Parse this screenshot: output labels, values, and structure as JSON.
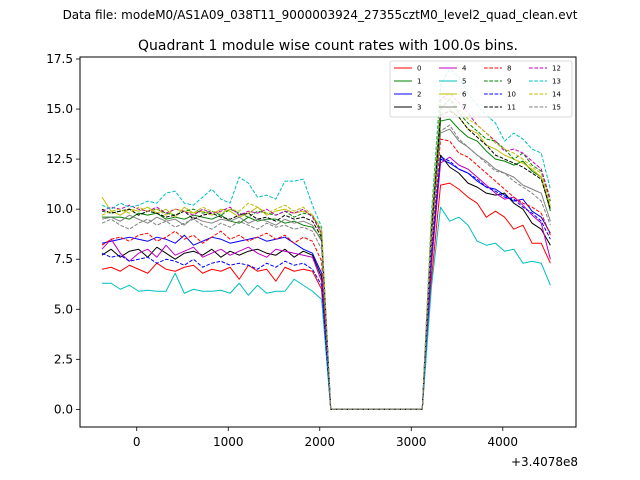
{
  "suptitle": "Data file: modeM0/AS1A09_038T11_9000003924_27355cztM0_level2_quad_clean.evt",
  "chart_data": {
    "type": "line",
    "title": "Quadrant 1 module wise count rates with 100.0s bins.",
    "xlabel": "",
    "ylabel": "",
    "x_offset_label": "+3.4078e8",
    "xlim": [
      -620,
      4800
    ],
    "ylim": [
      -0.88,
      17.6
    ],
    "xticks": [
      0,
      1000,
      2000,
      3000,
      4000
    ],
    "yticks": [
      0.0,
      2.5,
      5.0,
      7.5,
      10.0,
      12.5,
      15.0,
      17.5
    ],
    "ytick_labels": [
      "0.0",
      "2.5",
      "5.0",
      "7.5",
      "10.0",
      "12.5",
      "15.0",
      "17.5"
    ],
    "legend_position": "top-right",
    "legend_columns": 4,
    "x": [
      -380,
      -280,
      -180,
      -80,
      20,
      120,
      220,
      320,
      420,
      520,
      620,
      720,
      820,
      920,
      1020,
      1120,
      1220,
      1320,
      1420,
      1520,
      1620,
      1720,
      1820,
      1920,
      2020,
      2120,
      2220,
      2320,
      2420,
      2520,
      2620,
      2720,
      2820,
      2920,
      3020,
      3120,
      3220,
      3320,
      3420,
      3520,
      3620,
      3720,
      3820,
      3920,
      4020,
      4120,
      4220,
      4320,
      4420,
      4520
    ],
    "series": [
      {
        "name": "0",
        "color": "#ff0000",
        "dash": "solid",
        "values": [
          7.0,
          7.1,
          6.9,
          7.2,
          7.0,
          6.8,
          7.3,
          7.0,
          6.9,
          7.1,
          7.2,
          6.8,
          7.0,
          6.9,
          7.1,
          6.5,
          7.2,
          6.9,
          7.0,
          6.4,
          7.1,
          6.9,
          7.0,
          6.9,
          6.0,
          0.0,
          0.0,
          0.0,
          0.0,
          0.0,
          0.0,
          0.0,
          0.0,
          0.0,
          0.0,
          0.0,
          6.5,
          11.2,
          11.3,
          11.0,
          10.6,
          10.3,
          9.6,
          9.9,
          9.6,
          9.0,
          9.2,
          8.3,
          8.3,
          7.3
        ]
      },
      {
        "name": "1",
        "color": "#008000",
        "dash": "solid",
        "values": [
          9.6,
          9.6,
          9.6,
          9.5,
          9.8,
          9.7,
          9.8,
          9.5,
          9.6,
          9.5,
          9.7,
          9.6,
          9.5,
          9.7,
          9.4,
          9.3,
          9.6,
          9.4,
          9.5,
          9.5,
          9.3,
          9.4,
          9.2,
          9.1,
          8.5,
          0.0,
          0.0,
          0.0,
          0.0,
          0.0,
          0.0,
          0.0,
          0.0,
          0.0,
          0.0,
          0.0,
          8.5,
          14.4,
          14.5,
          14.0,
          13.6,
          13.4,
          12.9,
          12.5,
          12.4,
          12.2,
          12.4,
          11.9,
          11.6,
          9.9
        ]
      },
      {
        "name": "2",
        "color": "#0000ff",
        "dash": "solid",
        "values": [
          8.3,
          8.4,
          8.5,
          8.6,
          8.5,
          8.4,
          8.6,
          8.5,
          8.3,
          8.7,
          8.2,
          8.4,
          8.6,
          8.5,
          8.3,
          8.4,
          8.5,
          8.6,
          8.4,
          8.5,
          8.6,
          8.3,
          8.0,
          7.8,
          6.8,
          0.0,
          0.0,
          0.0,
          0.0,
          0.0,
          0.0,
          0.0,
          0.0,
          0.0,
          0.0,
          0.0,
          7.2,
          12.5,
          12.3,
          12.0,
          11.8,
          11.4,
          11.1,
          11.0,
          10.7,
          10.4,
          10.5,
          9.9,
          9.6,
          8.8
        ]
      },
      {
        "name": "3",
        "color": "#000000",
        "dash": "solid",
        "values": [
          7.7,
          8.0,
          7.6,
          7.9,
          8.0,
          7.6,
          8.1,
          7.8,
          7.5,
          7.8,
          7.9,
          7.7,
          8.0,
          7.6,
          7.9,
          7.7,
          7.9,
          8.0,
          7.8,
          7.7,
          8.0,
          7.6,
          7.9,
          7.7,
          6.6,
          0.0,
          0.0,
          0.0,
          0.0,
          0.0,
          0.0,
          0.0,
          0.0,
          0.0,
          0.0,
          0.0,
          7.5,
          12.7,
          12.1,
          11.8,
          11.3,
          11.1,
          10.8,
          10.7,
          10.8,
          10.3,
          10.0,
          9.3,
          9.0,
          8.2
        ]
      },
      {
        "name": "4",
        "color": "#bf00bf",
        "dash": "solid",
        "values": [
          8.0,
          8.5,
          7.8,
          7.4,
          7.8,
          8.0,
          7.6,
          8.2,
          7.7,
          7.9,
          8.1,
          7.6,
          7.8,
          8.0,
          7.7,
          7.9,
          8.1,
          7.8,
          7.6,
          8.0,
          7.9,
          7.8,
          7.7,
          7.6,
          6.4,
          0.0,
          0.0,
          0.0,
          0.0,
          0.0,
          0.0,
          0.0,
          0.0,
          0.0,
          0.0,
          0.0,
          7.3,
          12.3,
          12.6,
          12.2,
          12.0,
          11.6,
          11.2,
          10.8,
          10.5,
          10.6,
          10.2,
          9.7,
          9.3,
          7.5
        ]
      },
      {
        "name": "5",
        "color": "#00bfbf",
        "dash": "solid",
        "values": [
          6.3,
          6.3,
          6.0,
          6.2,
          5.9,
          5.95,
          5.9,
          5.9,
          6.8,
          5.8,
          6.0,
          5.9,
          5.9,
          5.95,
          5.8,
          6.3,
          5.7,
          6.2,
          5.8,
          5.9,
          5.9,
          6.5,
          6.2,
          5.9,
          5.5,
          0.0,
          0.0,
          0.0,
          0.0,
          0.0,
          0.0,
          0.0,
          0.0,
          0.0,
          0.0,
          0.0,
          6.1,
          10.1,
          9.4,
          9.6,
          9.2,
          8.4,
          8.2,
          8.3,
          7.9,
          8.0,
          7.3,
          7.4,
          7.3,
          6.2
        ]
      },
      {
        "name": "6",
        "color": "#bfbf00",
        "dash": "solid",
        "values": [
          10.6,
          9.9,
          9.7,
          10.0,
          9.9,
          10.1,
          9.8,
          10.0,
          9.6,
          10.1,
          9.8,
          9.9,
          9.7,
          10.0,
          9.9,
          9.6,
          9.8,
          10.1,
          9.7,
          9.9,
          10.0,
          9.8,
          9.9,
          9.7,
          8.7,
          0.0,
          0.0,
          0.0,
          0.0,
          0.0,
          0.0,
          0.0,
          0.0,
          0.0,
          0.0,
          0.0,
          9.0,
          15.2,
          15.0,
          14.6,
          14.0,
          13.8,
          13.2,
          13.0,
          12.7,
          12.5,
          12.3,
          12.0,
          11.6,
          10.1
        ]
      },
      {
        "name": "7",
        "color": "#808080",
        "dash": "solid",
        "values": [
          9.5,
          9.6,
          9.4,
          9.7,
          9.5,
          9.3,
          9.6,
          9.4,
          9.5,
          9.2,
          9.6,
          9.4,
          9.3,
          9.5,
          9.4,
          9.6,
          9.3,
          9.5,
          9.4,
          9.2,
          9.5,
          9.3,
          9.4,
          9.2,
          8.4,
          0.0,
          0.0,
          0.0,
          0.0,
          0.0,
          0.0,
          0.0,
          0.0,
          0.0,
          0.0,
          0.0,
          8.8,
          13.8,
          14.0,
          13.4,
          13.1,
          12.7,
          12.4,
          12.0,
          11.8,
          11.6,
          11.2,
          11.0,
          10.8,
          9.4
        ]
      },
      {
        "name": "8",
        "color": "#ff0000",
        "dash": "dashed",
        "values": [
          8.2,
          8.5,
          8.6,
          8.4,
          8.7,
          8.8,
          8.4,
          8.6,
          8.9,
          8.5,
          8.7,
          8.3,
          8.6,
          8.9,
          8.5,
          8.7,
          8.4,
          8.6,
          8.8,
          8.5,
          8.7,
          8.3,
          8.6,
          8.4,
          7.4,
          0.0,
          0.0,
          0.0,
          0.0,
          0.0,
          0.0,
          0.0,
          0.0,
          0.0,
          0.0,
          0.0,
          8.0,
          13.5,
          13.4,
          12.8,
          12.6,
          12.2,
          11.8,
          11.4,
          11.0,
          10.6,
          10.3,
          10.1,
          9.8,
          8.7
        ]
      },
      {
        "name": "9",
        "color": "#008000",
        "dash": "dashed",
        "values": [
          9.9,
          9.8,
          9.9,
          10.0,
          9.7,
          9.9,
          10.0,
          9.8,
          9.7,
          9.9,
          10.0,
          9.8,
          9.9,
          9.7,
          10.0,
          9.8,
          9.6,
          9.9,
          9.8,
          9.7,
          9.9,
          9.6,
          9.8,
          9.7,
          8.9,
          0.0,
          0.0,
          0.0,
          0.0,
          0.0,
          0.0,
          0.0,
          0.0,
          0.0,
          0.0,
          0.0,
          9.2,
          15.0,
          15.5,
          14.8,
          14.3,
          13.9,
          13.5,
          13.4,
          13.0,
          12.5,
          12.8,
          12.2,
          11.9,
          10.4
        ]
      },
      {
        "name": "10",
        "color": "#0000ff",
        "dash": "dashed",
        "values": [
          7.8,
          7.6,
          7.7,
          7.4,
          7.5,
          7.6,
          7.3,
          7.5,
          7.4,
          7.2,
          7.5,
          7.1,
          7.3,
          7.4,
          7.2,
          7.3,
          7.2,
          7.0,
          7.3,
          7.1,
          7.4,
          7.2,
          7.3,
          7.0,
          6.2,
          0.0,
          0.0,
          0.0,
          0.0,
          0.0,
          0.0,
          0.0,
          0.0,
          0.0,
          0.0,
          0.0,
          7.8,
          12.6,
          12.4,
          12.0,
          11.8,
          11.5,
          11.1,
          10.9,
          10.6,
          10.5,
          10.1,
          9.8,
          9.4,
          8.5
        ]
      },
      {
        "name": "11",
        "color": "#000000",
        "dash": "dashed",
        "values": [
          10.0,
          9.8,
          9.9,
          10.0,
          9.7,
          9.9,
          9.8,
          9.6,
          9.7,
          9.9,
          9.5,
          9.7,
          9.8,
          9.6,
          9.5,
          9.7,
          9.8,
          9.5,
          9.6,
          9.4,
          9.7,
          9.5,
          9.6,
          9.4,
          8.6,
          0.0,
          0.0,
          0.0,
          0.0,
          0.0,
          0.0,
          0.0,
          0.0,
          0.0,
          0.0,
          0.0,
          8.9,
          14.7,
          14.9,
          14.6,
          14.0,
          13.6,
          13.2,
          12.7,
          12.5,
          12.3,
          12.1,
          11.8,
          11.5,
          10.0
        ]
      },
      {
        "name": "12",
        "color": "#bf00bf",
        "dash": "dashed",
        "values": [
          9.9,
          10.1,
          10.0,
          10.2,
          10.0,
          9.9,
          10.1,
          9.8,
          10.0,
          9.9,
          9.7,
          10.0,
          9.8,
          9.9,
          10.1,
          9.7,
          9.9,
          9.8,
          10.0,
          9.7,
          9.9,
          9.8,
          10.0,
          9.6,
          8.8,
          0.0,
          0.0,
          0.0,
          0.0,
          0.0,
          0.0,
          0.0,
          0.0,
          0.0,
          0.0,
          0.0,
          9.5,
          15.5,
          15.8,
          15.3,
          14.8,
          14.2,
          13.8,
          13.4,
          12.9,
          13.0,
          12.8,
          12.4,
          12.0,
          10.5
        ]
      },
      {
        "name": "13",
        "color": "#00bfbf",
        "dash": "dashed",
        "values": [
          10.2,
          10.0,
          10.3,
          10.1,
          10.2,
          10.4,
          10.3,
          10.8,
          10.9,
          10.3,
          10.2,
          10.6,
          11.0,
          10.5,
          10.3,
          11.6,
          11.3,
          10.6,
          10.7,
          10.5,
          11.4,
          11.4,
          11.5,
          10.2,
          9.1,
          0.0,
          0.0,
          0.0,
          0.0,
          0.0,
          0.0,
          0.0,
          0.0,
          0.0,
          0.0,
          0.0,
          9.8,
          16.2,
          17.0,
          16.6,
          15.8,
          15.2,
          14.7,
          14.3,
          13.4,
          13.8,
          13.5,
          13.0,
          12.8,
          11.0
        ]
      },
      {
        "name": "14",
        "color": "#bfbf00",
        "dash": "dashed",
        "values": [
          9.7,
          9.9,
          10.0,
          9.8,
          10.1,
          9.9,
          10.0,
          9.7,
          10.0,
          9.9,
          9.8,
          10.1,
          9.9,
          9.8,
          10.0,
          9.9,
          10.3,
          10.1,
          9.8,
          10.0,
          10.2,
          9.9,
          10.1,
          9.7,
          9.0,
          0.0,
          0.0,
          0.0,
          0.0,
          0.0,
          0.0,
          0.0,
          0.0,
          0.0,
          0.0,
          0.0,
          9.4,
          15.4,
          15.6,
          15.0,
          14.5,
          14.2,
          13.8,
          13.3,
          13.0,
          12.8,
          12.5,
          12.1,
          11.8,
          10.2
        ]
      },
      {
        "name": "15",
        "color": "#808080",
        "dash": "dashed",
        "values": [
          9.3,
          9.5,
          9.2,
          9.0,
          9.3,
          9.5,
          9.2,
          9.4,
          9.1,
          9.3,
          9.5,
          9.2,
          9.0,
          9.3,
          9.1,
          9.4,
          9.2,
          9.0,
          9.3,
          9.1,
          9.2,
          9.0,
          9.1,
          8.9,
          8.0,
          0.0,
          0.0,
          0.0,
          0.0,
          0.0,
          0.0,
          0.0,
          0.0,
          0.0,
          0.0,
          0.0,
          8.4,
          13.9,
          14.2,
          13.5,
          13.1,
          12.7,
          12.3,
          11.9,
          11.8,
          11.4,
          11.1,
          10.8,
          10.4,
          9.2
        ]
      }
    ]
  }
}
